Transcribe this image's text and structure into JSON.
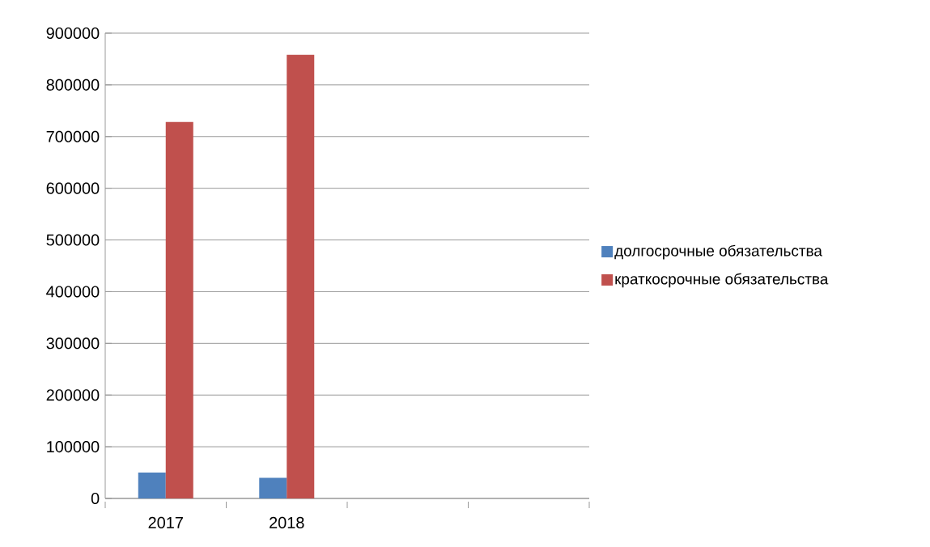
{
  "chart_data": {
    "type": "bar",
    "categories": [
      "2017",
      "2018",
      null,
      null
    ],
    "series": [
      {
        "name": "долгосрочные обязательства",
        "color": "#4f81bd",
        "values": [
          50000,
          40000,
          null,
          null
        ]
      },
      {
        "name": "краткосрочные обязательства",
        "color": "#c0504d",
        "values": [
          728000,
          858000,
          null,
          null
        ]
      }
    ],
    "ylim": [
      0,
      900000
    ],
    "yticks": [
      0,
      100000,
      200000,
      300000,
      400000,
      500000,
      600000,
      700000,
      800000,
      900000
    ],
    "grid": "y",
    "legend": "right"
  }
}
